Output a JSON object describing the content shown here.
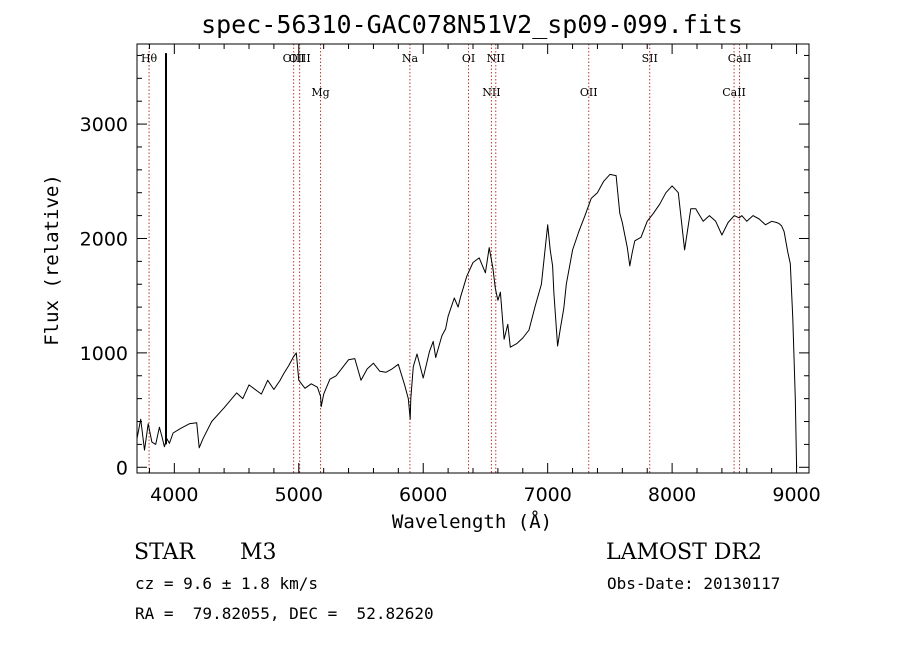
{
  "chart_data": {
    "type": "line",
    "title": "spec-56310-GAC078N51V2_sp09-099.fits",
    "xlabel": "Wavelength (Å)",
    "ylabel": "Flux (relative)",
    "xlim": [
      3700,
      9100
    ],
    "ylim": [
      -50,
      3700
    ],
    "xticks": [
      4000,
      5000,
      6000,
      7000,
      8000,
      9000
    ],
    "yticks": [
      0,
      1000,
      2000,
      3000
    ],
    "series": [
      {
        "x": [
          3700,
          3730,
          3760,
          3790,
          3820,
          3850,
          3880,
          3900,
          3920,
          3940,
          3960,
          3990,
          4050,
          4120,
          4180,
          4200,
          4230,
          4300,
          4400,
          4500,
          4550,
          4600,
          4700,
          4750,
          4800,
          4850,
          4880,
          4920,
          4960,
          4980,
          5000,
          5050,
          5100,
          5150,
          5175,
          5180,
          5200,
          5250,
          5300,
          5350,
          5400,
          5450,
          5500,
          5550,
          5600,
          5650,
          5700,
          5750,
          5800,
          5850,
          5880,
          5895,
          5900,
          5920,
          5950,
          6000,
          6050,
          6080,
          6100,
          6150,
          6180,
          6200,
          6250,
          6280,
          6300,
          6350,
          6400,
          6450,
          6500,
          6530,
          6560,
          6580,
          6600,
          6620,
          6650,
          6680,
          6700,
          6750,
          6800,
          6850,
          6900,
          6950,
          7000,
          7020,
          7040,
          7050,
          7080,
          7100,
          7130,
          7150,
          7200,
          7250,
          7300,
          7350,
          7400,
          7450,
          7500,
          7550,
          7580,
          7600,
          7640,
          7660,
          7680,
          7700,
          7750,
          7800,
          7850,
          7900,
          7950,
          8000,
          8050,
          8100,
          8150,
          8190,
          8200,
          8250,
          8300,
          8350,
          8400,
          8450,
          8500,
          8540,
          8560,
          8600,
          8650,
          8700,
          8750,
          8800,
          8840,
          8860,
          8880,
          8900,
          8930,
          8950,
          8970,
          8990,
          9000
        ],
        "y": [
          250,
          420,
          150,
          380,
          220,
          200,
          350,
          270,
          180,
          250,
          210,
          300,
          340,
          380,
          390,
          170,
          250,
          400,
          520,
          650,
          600,
          720,
          640,
          760,
          680,
          760,
          820,
          890,
          970,
          1000,
          760,
          690,
          730,
          700,
          620,
          530,
          640,
          770,
          800,
          870,
          940,
          950,
          760,
          860,
          910,
          840,
          830,
          860,
          900,
          720,
          600,
          420,
          600,
          880,
          990,
          780,
          1010,
          1100,
          960,
          1150,
          1210,
          1320,
          1480,
          1400,
          1490,
          1670,
          1790,
          1830,
          1700,
          1920,
          1740,
          1560,
          1460,
          1530,
          1120,
          1250,
          1050,
          1080,
          1130,
          1200,
          1410,
          1600,
          2120,
          1900,
          1760,
          1520,
          1060,
          1200,
          1390,
          1600,
          1900,
          2060,
          2200,
          2350,
          2400,
          2500,
          2560,
          2550,
          2220,
          2140,
          1920,
          1760,
          1880,
          1980,
          2010,
          2150,
          2220,
          2300,
          2400,
          2460,
          2400,
          1900,
          2260,
          2260,
          2240,
          2150,
          2200,
          2150,
          2030,
          2140,
          2200,
          2180,
          2200,
          2150,
          2200,
          2170,
          2120,
          2150,
          2140,
          2130,
          2110,
          2060,
          1880,
          1780,
          1300,
          600,
          0
        ]
      }
    ],
    "spectral_lines": [
      {
        "name": "Hθ",
        "wavelength": 3797,
        "row": 1
      },
      {
        "name": "OIII",
        "wavelength": 4959,
        "row": 1
      },
      {
        "name": "OIII",
        "wavelength": 5007,
        "row": 1
      },
      {
        "name": "Mg",
        "wavelength": 5175,
        "row": 2
      },
      {
        "name": "Na",
        "wavelength": 5893,
        "row": 1
      },
      {
        "name": "OI",
        "wavelength": 6364,
        "row": 1
      },
      {
        "name": "NII",
        "wavelength": 6548,
        "row": 2
      },
      {
        "name": "NII",
        "wavelength": 6583,
        "row": 1
      },
      {
        "name": "OII",
        "wavelength": 7330,
        "row": 2
      },
      {
        "name": "SII",
        "wavelength": 7820,
        "row": 1
      },
      {
        "name": "CaII",
        "wavelength": 8498,
        "row": 2
      },
      {
        "name": "CaII",
        "wavelength": 8542,
        "row": 1
      }
    ],
    "spike": {
      "x": 3933,
      "y_top": 3620
    },
    "colors": {
      "spectrum": "#000000",
      "line_marker": "#c0392b",
      "axes": "#000000"
    },
    "grid": false
  },
  "info": {
    "object_class": "STAR",
    "subclass": "M3",
    "survey": "LAMOST DR2",
    "velocity": "cz = 9.6 ± 1.8 km/s",
    "obs_date": "Obs-Date: 20130117",
    "coords": "RA =  79.82055, DEC =  52.82620"
  }
}
